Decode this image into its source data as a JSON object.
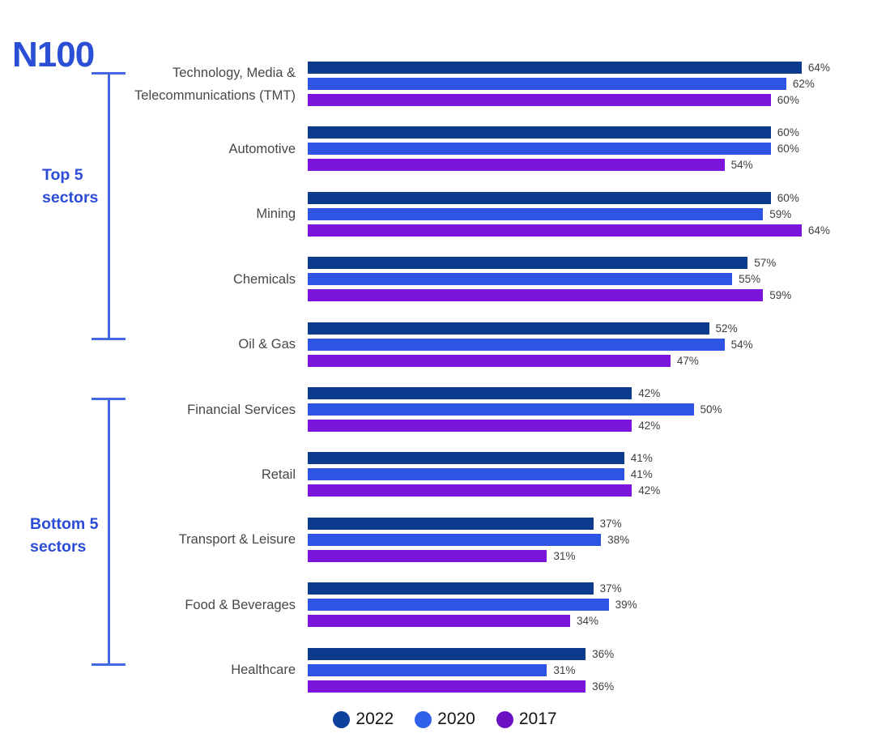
{
  "title": "N100",
  "colors": {
    "title": "#2a4ed6",
    "bracket": "#4468e2",
    "bracket_label": "#2b4cd7",
    "sector_label": "#474747",
    "value_label": "#3e3e3e",
    "series_2022": "#0c3a8d",
    "series_2020": "#2e54e3",
    "series_2017": "#7b15dc"
  },
  "brackets": {
    "top": {
      "line1": "Top 5",
      "line2": "sectors"
    },
    "bottom": {
      "line1": "Bottom 5",
      "line2": "sectors"
    }
  },
  "legend": {
    "items": [
      {
        "label": "2022",
        "color": "#0d3f9c"
      },
      {
        "label": "2020",
        "color": "#2f62e8"
      },
      {
        "label": "2017",
        "color": "#6c10c4"
      }
    ]
  },
  "chart_data": {
    "type": "bar",
    "orientation": "horizontal",
    "title": "N100",
    "categories": [
      "Technology, Media & Telecommunications (TMT)",
      "Automotive",
      "Mining",
      "Chemicals",
      "Oil & Gas",
      "Financial Services",
      "Retail",
      "Transport & Leisure",
      "Food & Beverages",
      "Healthcare"
    ],
    "series": [
      {
        "name": "2022",
        "color": "#0c3a8d",
        "values": [
          64,
          60,
          60,
          57,
          52,
          42,
          41,
          37,
          37,
          36
        ]
      },
      {
        "name": "2020",
        "color": "#2e54e3",
        "values": [
          62,
          60,
          59,
          55,
          54,
          50,
          41,
          38,
          39,
          31
        ]
      },
      {
        "name": "2017",
        "color": "#7b15dc",
        "values": [
          60,
          54,
          64,
          59,
          47,
          42,
          42,
          31,
          34,
          36
        ]
      }
    ],
    "value_suffix": "%",
    "xlim": [
      0,
      64
    ],
    "axis_visible": false,
    "grid": false,
    "legend_position": "bottom",
    "group_annotations": [
      {
        "label": "Top 5 sectors",
        "categories_span": [
          0,
          4
        ]
      },
      {
        "label": "Bottom 5 sectors",
        "categories_span": [
          5,
          9
        ]
      }
    ]
  }
}
